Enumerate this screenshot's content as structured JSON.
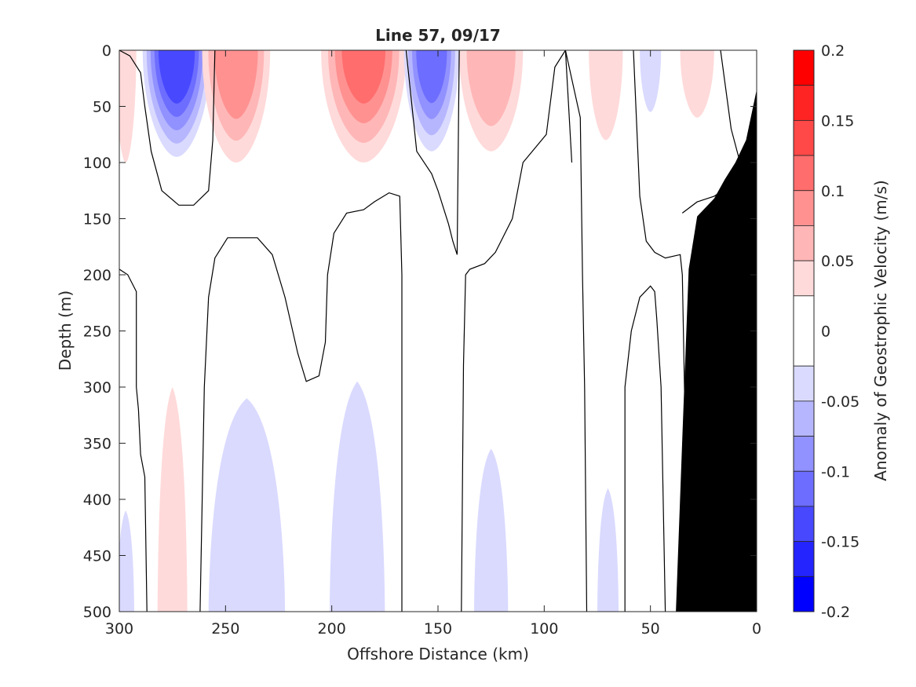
{
  "chart_data": {
    "type": "heatmap",
    "title": "Line 57, 09/17",
    "xlabel": "Offshore Distance (km)",
    "ylabel": "Depth (m)",
    "xlim": [
      300,
      0
    ],
    "ylim": [
      0,
      500
    ],
    "x_reversed": true,
    "y_reversed": true,
    "x_ticks": [
      300,
      250,
      200,
      150,
      100,
      50,
      0
    ],
    "y_ticks": [
      0,
      50,
      100,
      150,
      200,
      250,
      300,
      350,
      400,
      450,
      500
    ],
    "colorbar": {
      "label": "Anomaly of Geostrophic Velocity (m/s)",
      "range": [
        -0.2,
        0.2
      ],
      "ticks": [
        0.2,
        0.15,
        0.1,
        0.05,
        0,
        -0.05,
        -0.1,
        -0.15,
        -0.2
      ],
      "tick_labels": [
        "0.2",
        "0.15",
        "0.1",
        "0.05",
        "0",
        "-0.05",
        "-0.1",
        "-0.15",
        "-0.2"
      ],
      "levels": [
        {
          "from": 0.175,
          "to": 0.2,
          "color": "#ff0000"
        },
        {
          "from": 0.15,
          "to": 0.175,
          "color": "#ff2424"
        },
        {
          "from": 0.125,
          "to": 0.15,
          "color": "#ff4848"
        },
        {
          "from": 0.1,
          "to": 0.125,
          "color": "#ff6d6d"
        },
        {
          "from": 0.075,
          "to": 0.1,
          "color": "#ff9191"
        },
        {
          "from": 0.05,
          "to": 0.075,
          "color": "#ffb6b6"
        },
        {
          "from": 0.025,
          "to": 0.05,
          "color": "#ffdada"
        },
        {
          "from": -0.025,
          "to": 0.025,
          "color": "#ffffff"
        },
        {
          "from": -0.05,
          "to": -0.025,
          "color": "#dadaff"
        },
        {
          "from": -0.075,
          "to": -0.05,
          "color": "#b6b6ff"
        },
        {
          "from": -0.1,
          "to": -0.075,
          "color": "#9191ff"
        },
        {
          "from": -0.125,
          "to": -0.1,
          "color": "#6d6dff"
        },
        {
          "from": -0.15,
          "to": -0.125,
          "color": "#4848ff"
        },
        {
          "from": -0.175,
          "to": -0.15,
          "color": "#2424ff"
        },
        {
          "from": -0.2,
          "to": -0.175,
          "color": "#0000ff"
        }
      ]
    },
    "features": [
      {
        "name": "surface-eddy",
        "sign": "negative",
        "x_center": 273,
        "x_halfwidth": 16,
        "depth_max": 95,
        "peak_anomaly": -0.14
      },
      {
        "name": "surface-eddy",
        "sign": "positive",
        "x_center": 245,
        "x_halfwidth": 16,
        "depth_max": 100,
        "peak_anomaly": 0.09
      },
      {
        "name": "surface-eddy",
        "sign": "positive",
        "x_center": 185,
        "x_halfwidth": 20,
        "depth_max": 100,
        "peak_anomaly": 0.1
      },
      {
        "name": "surface-eddy",
        "sign": "negative",
        "x_center": 153,
        "x_halfwidth": 13,
        "depth_max": 90,
        "peak_anomaly": -0.11
      },
      {
        "name": "surface-eddy",
        "sign": "positive",
        "x_center": 125,
        "x_halfwidth": 15,
        "depth_max": 90,
        "peak_anomaly": 0.07
      },
      {
        "name": "surface-eddy",
        "sign": "positive",
        "x_center": 71,
        "x_halfwidth": 8,
        "depth_max": 80,
        "peak_anomaly": 0.03
      },
      {
        "name": "surface-eddy",
        "sign": "negative",
        "x_center": 50,
        "x_halfwidth": 5,
        "depth_max": 55,
        "peak_anomaly": -0.03
      },
      {
        "name": "surface-eddy",
        "sign": "positive",
        "x_center": 28,
        "x_halfwidth": 8,
        "depth_max": 60,
        "peak_anomaly": 0.03
      },
      {
        "name": "edge-feature",
        "sign": "positive",
        "x_center": 297,
        "x_halfwidth": 5,
        "depth_max": 100,
        "peak_anomaly": 0.03
      },
      {
        "name": "deep-feature",
        "sign": "positive",
        "x_center": 275,
        "x_halfwidth": 7,
        "depth_min": 300,
        "depth_max": 500,
        "peak_anomaly": 0.03
      },
      {
        "name": "deep-feature",
        "sign": "negative",
        "x_center": 240,
        "x_halfwidth": 18,
        "depth_min": 310,
        "depth_max": 500,
        "peak_anomaly": -0.03
      },
      {
        "name": "deep-feature",
        "sign": "negative",
        "x_center": 188,
        "x_halfwidth": 13,
        "depth_min": 295,
        "depth_max": 500,
        "peak_anomaly": -0.03
      },
      {
        "name": "deep-feature",
        "sign": "negative",
        "x_center": 125,
        "x_halfwidth": 8,
        "depth_min": 355,
        "depth_max": 500,
        "peak_anomaly": -0.03
      },
      {
        "name": "deep-feature",
        "sign": "negative",
        "x_center": 70,
        "x_halfwidth": 5,
        "depth_min": 390,
        "depth_max": 500,
        "peak_anomaly": -0.03
      },
      {
        "name": "deep-feature",
        "sign": "negative",
        "x_center": 297,
        "x_halfwidth": 4,
        "depth_min": 410,
        "depth_max": 500,
        "peak_anomaly": -0.03
      }
    ],
    "zero_contours": [
      [
        [
          300,
          0
        ],
        [
          295,
          5
        ],
        [
          290,
          20
        ],
        [
          288,
          50
        ],
        [
          285,
          90
        ],
        [
          280,
          125
        ],
        [
          272,
          138
        ],
        [
          265,
          138
        ],
        [
          258,
          125
        ],
        [
          256,
          80
        ],
        [
          255,
          0
        ]
      ],
      [
        [
          300,
          195
        ],
        [
          296,
          200
        ],
        [
          292,
          215
        ],
        [
          292,
          300
        ],
        [
          291,
          320
        ],
        [
          290,
          360
        ],
        [
          288,
          380
        ],
        [
          287,
          500
        ]
      ],
      [
        [
          262,
          500
        ],
        [
          261,
          400
        ],
        [
          260,
          300
        ],
        [
          258,
          220
        ],
        [
          255,
          185
        ],
        [
          249,
          167
        ],
        [
          235,
          167
        ],
        [
          228,
          182
        ],
        [
          222,
          220
        ],
        [
          216,
          270
        ],
        [
          212,
          295
        ],
        [
          206,
          290
        ],
        [
          203,
          260
        ],
        [
          202,
          200
        ],
        [
          199,
          163
        ],
        [
          193,
          145
        ],
        [
          185,
          142
        ],
        [
          180,
          135
        ],
        [
          173,
          127
        ],
        [
          168,
          130
        ],
        [
          167,
          200
        ],
        [
          167,
          500
        ]
      ],
      [
        [
          165,
          0
        ],
        [
          160,
          90
        ],
        [
          153,
          110
        ],
        [
          150,
          125
        ],
        [
          145,
          155
        ],
        [
          143,
          170
        ],
        [
          141,
          182
        ],
        [
          140,
          0
        ]
      ],
      [
        [
          139,
          500
        ],
        [
          138,
          280
        ],
        [
          137,
          200
        ],
        [
          135,
          195
        ],
        [
          128,
          190
        ],
        [
          123,
          180
        ],
        [
          115,
          150
        ],
        [
          110,
          100
        ],
        [
          99,
          75
        ],
        [
          95,
          15
        ],
        [
          90,
          0
        ],
        [
          83,
          60
        ],
        [
          82,
          200
        ],
        [
          81,
          300
        ],
        [
          80,
          500
        ]
      ],
      [
        [
          62,
          500
        ],
        [
          62,
          300
        ],
        [
          59,
          250
        ],
        [
          55,
          220
        ],
        [
          50,
          210
        ],
        [
          48,
          215
        ],
        [
          47,
          240
        ],
        [
          45,
          300
        ],
        [
          44,
          400
        ],
        [
          43,
          500
        ]
      ],
      [
        [
          90,
          0
        ],
        [
          87,
          100
        ]
      ],
      [
        [
          58,
          0
        ],
        [
          55,
          130
        ],
        [
          52,
          170
        ],
        [
          48,
          180
        ],
        [
          43,
          185
        ],
        [
          36,
          182
        ],
        [
          35,
          200
        ],
        [
          34,
          300
        ],
        [
          33,
          400
        ],
        [
          30,
          500
        ]
      ],
      [
        [
          17,
          0
        ],
        [
          12,
          70
        ],
        [
          5,
          120
        ],
        [
          0,
          130
        ]
      ],
      [
        [
          35,
          145
        ],
        [
          28,
          135
        ],
        [
          20,
          130
        ],
        [
          12,
          120
        ]
      ]
    ],
    "land_mask": [
      [
        0,
        35
      ],
      [
        5,
        80
      ],
      [
        10,
        100
      ],
      [
        15,
        115
      ],
      [
        20,
        132
      ],
      [
        28,
        148
      ],
      [
        32,
        195
      ],
      [
        35,
        345
      ],
      [
        38,
        500
      ],
      [
        0,
        500
      ]
    ],
    "land_color": "#000000"
  }
}
